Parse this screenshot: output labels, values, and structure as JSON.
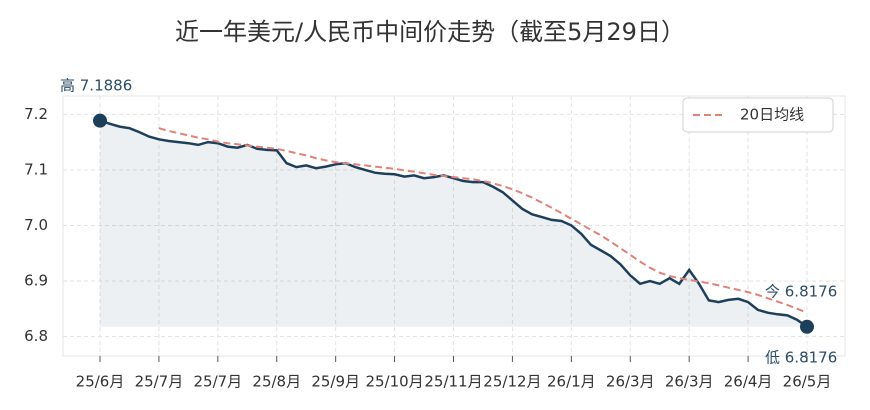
{
  "chart_data": {
    "type": "line",
    "title": "近一年美元/人民币中间价走势（截至5月29日）",
    "categories": [
      "25/6月",
      null,
      null,
      null,
      null,
      null,
      "25/7月",
      null,
      null,
      null,
      null,
      null,
      "25/7月",
      null,
      null,
      null,
      null,
      null,
      "25/8月",
      null,
      null,
      null,
      null,
      null,
      "25/9月",
      null,
      null,
      null,
      null,
      null,
      "25/10月",
      null,
      null,
      null,
      null,
      null,
      "25/11月",
      null,
      null,
      null,
      null,
      null,
      "25/12月",
      null,
      null,
      null,
      null,
      null,
      "26/1月",
      null,
      null,
      null,
      null,
      null,
      "26/3月",
      null,
      null,
      null,
      null,
      null,
      "26/3月",
      null,
      null,
      null,
      null,
      null,
      "26/4月",
      null,
      null,
      null,
      null,
      null,
      "26/5月"
    ],
    "series": [
      {
        "color": "#1d3f5c",
        "values": [
          7.1886,
          7.183,
          7.178,
          7.175,
          7.168,
          7.16,
          7.155,
          7.152,
          7.15,
          7.148,
          7.145,
          7.15,
          7.148,
          7.142,
          7.14,
          7.145,
          7.138,
          7.136,
          7.135,
          7.112,
          7.105,
          7.108,
          7.103,
          7.106,
          7.11,
          7.112,
          7.105,
          7.1,
          7.095,
          7.093,
          7.092,
          7.088,
          7.09,
          7.085,
          7.087,
          7.09,
          7.085,
          7.08,
          7.078,
          7.078,
          7.07,
          7.06,
          7.045,
          7.03,
          7.02,
          7.015,
          7.01,
          7.008,
          7.0,
          6.985,
          6.965,
          6.955,
          6.945,
          6.93,
          6.91,
          6.895,
          6.9,
          6.895,
          6.905,
          6.895,
          6.92,
          6.895,
          6.865,
          6.862,
          6.866,
          6.868,
          6.862,
          6.848,
          6.843,
          6.84,
          6.838,
          6.83,
          6.8176
        ]
      },
      {
        "name": "20日均线",
        "color": "#e0827a",
        "dashed": true,
        "values": [
          null,
          null,
          null,
          null,
          null,
          null,
          7.175,
          7.17,
          7.166,
          7.162,
          7.158,
          7.155,
          7.151,
          7.148,
          7.146,
          7.144,
          7.142,
          7.14,
          7.138,
          7.134,
          7.13,
          7.126,
          7.121,
          7.117,
          7.114,
          7.112,
          7.11,
          7.108,
          7.106,
          7.104,
          7.102,
          7.099,
          7.097,
          7.094,
          7.091,
          7.089,
          7.087,
          7.085,
          7.083,
          7.08,
          7.076,
          7.071,
          7.065,
          7.058,
          7.05,
          7.041,
          7.032,
          7.022,
          7.012,
          7.002,
          6.992,
          6.982,
          6.971,
          6.959,
          6.947,
          6.935,
          6.924,
          6.915,
          6.909,
          6.905,
          6.902,
          6.899,
          6.896,
          6.892,
          6.888,
          6.884,
          6.88,
          6.875,
          6.869,
          6.863,
          6.857,
          6.85,
          6.843
        ]
      }
    ],
    "ylim": [
      6.765,
      7.233
    ],
    "yticks": [
      6.8,
      6.9,
      {
        "value": 7,
        "label": "7.0"
      },
      7.1,
      7.2
    ],
    "grid": true,
    "legend": "upper right",
    "annotations": {
      "high": "高 7.1886",
      "now": "今 6.8176",
      "low": "低 6.8176"
    }
  }
}
